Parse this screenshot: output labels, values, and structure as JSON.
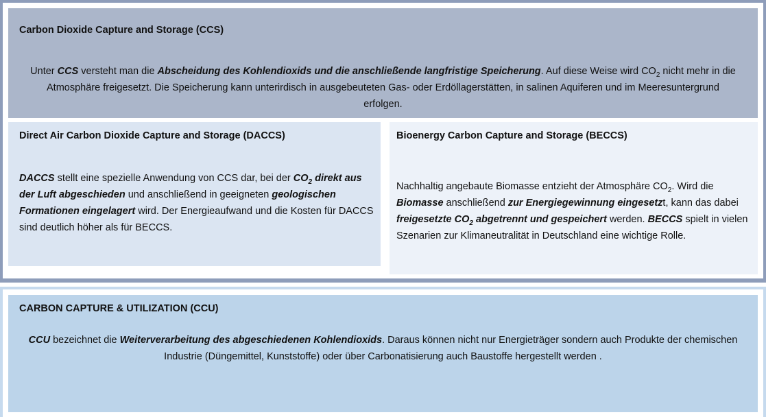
{
  "ccs": {
    "title": "Carbon Dioxide Capture and Storage (CCS)",
    "body": [
      {
        "text": "Unter "
      },
      {
        "text": "CCS",
        "emphasis": true
      },
      {
        "text": " versteht man die "
      },
      {
        "text": "Abscheidung des Kohlendioxids und die anschließende langfristige Speicherung",
        "emphasis": true
      },
      {
        "text": ". Auf diese Weise wird CO"
      },
      {
        "text": "2",
        "subscript": true
      },
      {
        "text": " nicht mehr in die Atmosphäre freigesetzt. Die Speicherung kann unterirdisch in ausgebeuteten Gas- oder Erdöllagerstätten, in salinen Aquiferen und im Meeresuntergrund erfolgen."
      }
    ]
  },
  "daccs": {
    "title": "Direct Air Carbon Dioxide Capture and Storage (DACCS)",
    "body": [
      {
        "text": "DACCS",
        "emphasis": true
      },
      {
        "text": " stellt eine spezielle Anwendung von CCS dar, bei der "
      },
      {
        "text": "CO",
        "emphasis": true
      },
      {
        "text": "2",
        "emphasis": true,
        "subscript": true
      },
      {
        "text": " direkt aus der Luft abgeschieden",
        "emphasis": true
      },
      {
        "text": " und anschließend in geeigneten "
      },
      {
        "text": "geologischen Formationen eingelagert",
        "emphasis": true
      },
      {
        "text": " wird. Der Energieaufwand und die Kosten für DACCS sind deutlich höher als für BECCS."
      }
    ]
  },
  "beccs": {
    "title": "Bioenergy Carbon Capture and Storage (BECCS)",
    "body": [
      {
        "text": "Nachhaltig angebaute Biomasse entzieht der Atmosphäre CO"
      },
      {
        "text": "2",
        "subscript": true
      },
      {
        "text": ". Wird die "
      },
      {
        "text": "Biomasse",
        "emphasis": true
      },
      {
        "text": " anschließend "
      },
      {
        "text": "zur Energiegewinnung eingesetz",
        "emphasis": true
      },
      {
        "text": "t, kann das dabei "
      },
      {
        "text": "freigesetzte CO",
        "emphasis": true
      },
      {
        "text": "2",
        "emphasis": true,
        "subscript": true
      },
      {
        "text": " abgetrennt und gespeichert",
        "emphasis": true
      },
      {
        "text": " werden. "
      },
      {
        "text": "BECCS",
        "emphasis": true
      },
      {
        "text": " spielt in vielen Szenarien zur Klimaneutralität in Deutschland eine wichtige Rolle."
      }
    ]
  },
  "ccu": {
    "title": "CARBON CAPTURE & UTILIZATION (CCU)",
    "body": [
      {
        "text": "CCU",
        "emphasis": true
      },
      {
        "text": " bezeichnet die "
      },
      {
        "text": "Weiterverarbeitung des abgeschiedenen Kohlendioxids",
        "emphasis": true
      },
      {
        "text": ". Daraus können nicht nur Energieträger sondern auch Produkte der chemischen Industrie (Düngemittel, Kunststoffe) oder über Carbonatisierung auch Baustoffe hergestellt werden ."
      }
    ]
  }
}
